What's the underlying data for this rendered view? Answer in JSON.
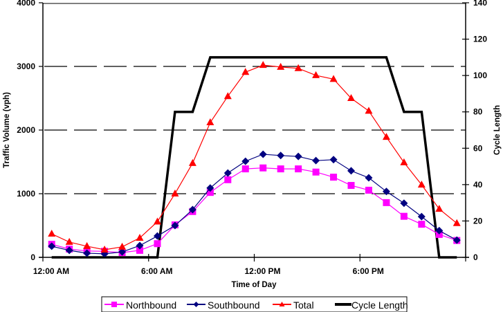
{
  "chart_data": {
    "type": "line",
    "title": "",
    "xlabel": "Time of Day",
    "ylabel": "Traffic Volume (vph)",
    "y2label": "Cycle Length",
    "xlim_hours": [
      0,
      24
    ],
    "x_ticks": [
      {
        "hour": 0,
        "label": "12:00 AM"
      },
      {
        "hour": 6,
        "label": "6:00 AM"
      },
      {
        "hour": 12,
        "label": "12:00 PM"
      },
      {
        "hour": 18,
        "label": "6:00 PM"
      },
      {
        "hour": 24,
        "label": ""
      }
    ],
    "ylim": [
      0,
      4000
    ],
    "y_ticks": [
      "0",
      "1000",
      "2000",
      "3000",
      "4000"
    ],
    "y2lim": [
      0,
      140
    ],
    "y2_ticks": [
      "0",
      "20",
      "40",
      "60",
      "80",
      "100",
      "120",
      "140"
    ],
    "grid": "horizontal dashed at 1000, 2000, 3000",
    "legend_position": "bottom",
    "x": [
      0.5,
      1.5,
      2.5,
      3.5,
      4.5,
      5.5,
      6.5,
      7.5,
      8.5,
      9.5,
      10.5,
      11.5,
      12.5,
      13.5,
      14.5,
      15.5,
      16.5,
      17.5,
      18.5,
      19.5,
      20.5,
      21.5,
      22.5,
      23.5
    ],
    "series": [
      {
        "name": "Northbound",
        "axis": "left",
        "color": "#ff00ff",
        "marker": "square",
        "values": [
          205,
          130,
          100,
          95,
          75,
          110,
          215,
          510,
          720,
          1020,
          1220,
          1390,
          1405,
          1390,
          1390,
          1340,
          1260,
          1130,
          1055,
          860,
          645,
          520,
          360,
          265
        ]
      },
      {
        "name": "Southbound",
        "axis": "left",
        "color": "#000080",
        "marker": "diamond",
        "values": [
          175,
          110,
          65,
          55,
          85,
          185,
          335,
          500,
          750,
          1090,
          1325,
          1510,
          1620,
          1600,
          1585,
          1520,
          1535,
          1360,
          1250,
          1035,
          850,
          640,
          420,
          270
        ]
      },
      {
        "name": "Total",
        "axis": "left",
        "color": "#ff0000",
        "marker": "triangle",
        "values": [
          370,
          240,
          175,
          120,
          165,
          305,
          560,
          1000,
          1480,
          2120,
          2530,
          2910,
          3020,
          2990,
          2970,
          2860,
          2800,
          2500,
          2300,
          1890,
          1490,
          1140,
          760,
          535
        ]
      },
      {
        "name": "Cycle Length",
        "axis": "right",
        "color": "#000000",
        "marker": "none",
        "values": [
          0,
          0,
          0,
          0,
          0,
          0,
          0,
          80,
          80,
          110,
          110,
          110,
          110,
          110,
          110,
          110,
          110,
          110,
          110,
          110,
          80,
          80,
          0,
          0
        ]
      }
    ]
  }
}
